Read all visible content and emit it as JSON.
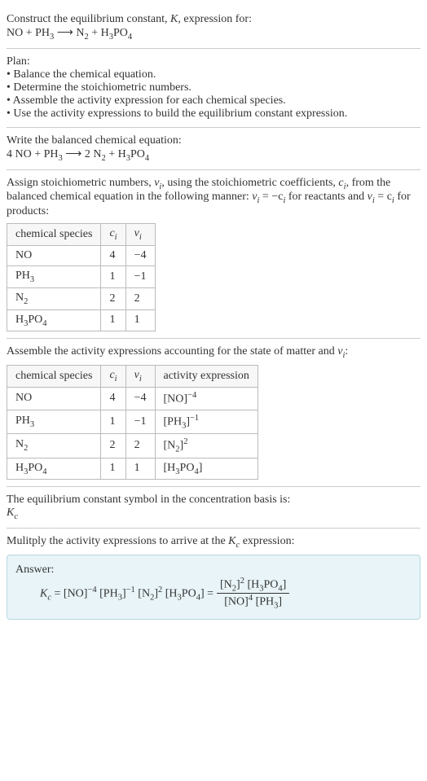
{
  "intro": {
    "line1": "Construct the equilibrium constant, ",
    "k": "K",
    "line1b": ", expression for:",
    "eq_lhs": "NO + PH",
    "eq_arrow": " ⟶ ",
    "eq_rhs_a": "N",
    "eq_rhs_b": " + H",
    "eq_rhs_c": "PO"
  },
  "plan": {
    "title": "Plan:",
    "b1": "• Balance the chemical equation.",
    "b2": "• Determine the stoichiometric numbers.",
    "b3": "• Assemble the activity expression for each chemical species.",
    "b4": "• Use the activity expressions to build the equilibrium constant expression."
  },
  "balanced": {
    "title": "Write the balanced chemical equation:",
    "c1": "4 NO + PH",
    "arrow": " ⟶ ",
    "c2": "2 N",
    "c3": " + H",
    "c4": "PO"
  },
  "stoich": {
    "text1": "Assign stoichiometric numbers, ",
    "nu": "ν",
    "text2": ", using the stoichiometric coefficients, ",
    "ci": "c",
    "text3": ", from the balanced chemical equation in the following manner: ",
    "rel1a": "ν",
    "rel1b": " = −c",
    "rel1c": " for reactants and ",
    "rel2a": "ν",
    "rel2b": " = c",
    "rel2c": " for products:",
    "hdr_species": "chemical species",
    "hdr_ci": "c",
    "hdr_nu": "ν",
    "r1s": "NO",
    "r1c": "4",
    "r1n": "−4",
    "r2s": "PH",
    "r2c": "1",
    "r2n": "−1",
    "r3s": "N",
    "r3c": "2",
    "r3n": "2",
    "r4s": "H",
    "r4sb": "PO",
    "r4c": "1",
    "r4n": "1"
  },
  "activity": {
    "title": "Assemble the activity expressions accounting for the state of matter and ",
    "nu": "ν",
    "title_end": ":",
    "hdr_species": "chemical species",
    "hdr_ci": "c",
    "hdr_nu": "ν",
    "hdr_act": "activity expression",
    "r1s": "NO",
    "r1c": "4",
    "r1n": "−4",
    "r1a": "[NO]",
    "r1e": "−4",
    "r2s": "PH",
    "r2c": "1",
    "r2n": "−1",
    "r2a": "[PH",
    "r2ab": "]",
    "r2e": "−1",
    "r3s": "N",
    "r3c": "2",
    "r3n": "2",
    "r3a": "[N",
    "r3ab": "]",
    "r3e": "2",
    "r4s": "H",
    "r4sb": "PO",
    "r4c": "1",
    "r4n": "1",
    "r4a": "[H",
    "r4ab": "PO",
    "r4ac": "]"
  },
  "basis": {
    "line": "The equilibrium constant symbol in the concentration basis is:",
    "kc": "K"
  },
  "final": {
    "title": "Mulitply the activity expressions to arrive at the ",
    "kc": "K",
    "title_end": " expression:",
    "answer": "Answer:",
    "kc2": "K",
    "eq": " = [NO]",
    "e1": "−4",
    "p2": " [PH",
    "p2b": "]",
    "e2": "−1",
    "p3": " [N",
    "p3b": "]",
    "e3": "2",
    "p4": " [H",
    "p4b": "PO",
    "p4c": "] = ",
    "num1": "[N",
    "num1b": "]",
    "numE": "2",
    "num2": " [H",
    "num2b": "PO",
    "num2c": "]",
    "den1": "[NO]",
    "denE": "4",
    "den2": " [PH",
    "den2b": "]"
  },
  "subs": {
    "s2": "2",
    "s3": "3",
    "s4": "4",
    "si": "i",
    "sc": "c"
  }
}
